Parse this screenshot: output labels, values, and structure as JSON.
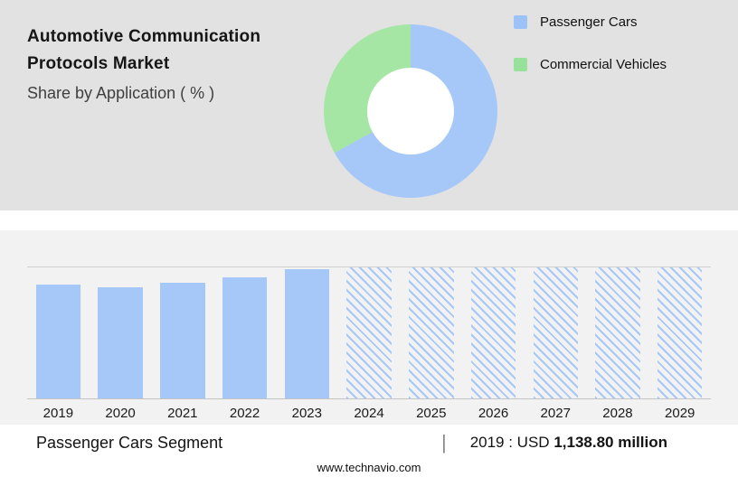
{
  "header": {
    "title_line1": "Automotive Communication",
    "title_line2": "Protocols Market",
    "subtitle": "Share by Application ( % )"
  },
  "legend": {
    "items": [
      {
        "label": "Passenger Cars",
        "color": "#9CC2F7"
      },
      {
        "label": "Commercial Vehicles",
        "color": "#97E29B"
      }
    ]
  },
  "colors": {
    "bar_blue": "#A6C8F8",
    "pie_blue": "#A6C8F8",
    "pie_green": "#A6E6A4",
    "top_panel_bg": "#e2e2e2",
    "bottom_panel_bg": "#f2f2f2"
  },
  "chart_data": [
    {
      "type": "pie",
      "variant": "donut",
      "title": "Share by Application ( % )",
      "labels": [
        "Passenger Cars",
        "Commercial Vehicles"
      ],
      "values": [
        67,
        33
      ],
      "colors": [
        "#A6C8F8",
        "#A6E6A4"
      ],
      "legend_position": "right",
      "note": "slice percentages estimated from arc angles; no data labels shown"
    },
    {
      "type": "bar",
      "categories": [
        "2019",
        "2020",
        "2021",
        "2022",
        "2023",
        "2024",
        "2025",
        "2026",
        "2027",
        "2028",
        "2029"
      ],
      "values": [
        87,
        85,
        88,
        92.5,
        98.5,
        100,
        100,
        100,
        100,
        100,
        100
      ],
      "historical_categories": [
        "2019",
        "2020",
        "2021",
        "2022",
        "2023"
      ],
      "forecast_categories": [
        "2024",
        "2025",
        "2026",
        "2027",
        "2028",
        "2029"
      ],
      "forecast_style": "hatched",
      "bar_color": "#A6C8F8",
      "ylim": [
        0,
        100
      ],
      "grid": false,
      "note": "y-axis unlabeled; values are relative bar heights (% of plot height)",
      "known_point": "2019 Passenger Cars segment = USD 1,138.80 million"
    }
  ],
  "footer": {
    "segment_label": "Passenger Cars Segment",
    "separator": "|",
    "value_label": "2019 : USD",
    "value_amount": "1,138.80 million",
    "website": "www.technavio.com"
  }
}
